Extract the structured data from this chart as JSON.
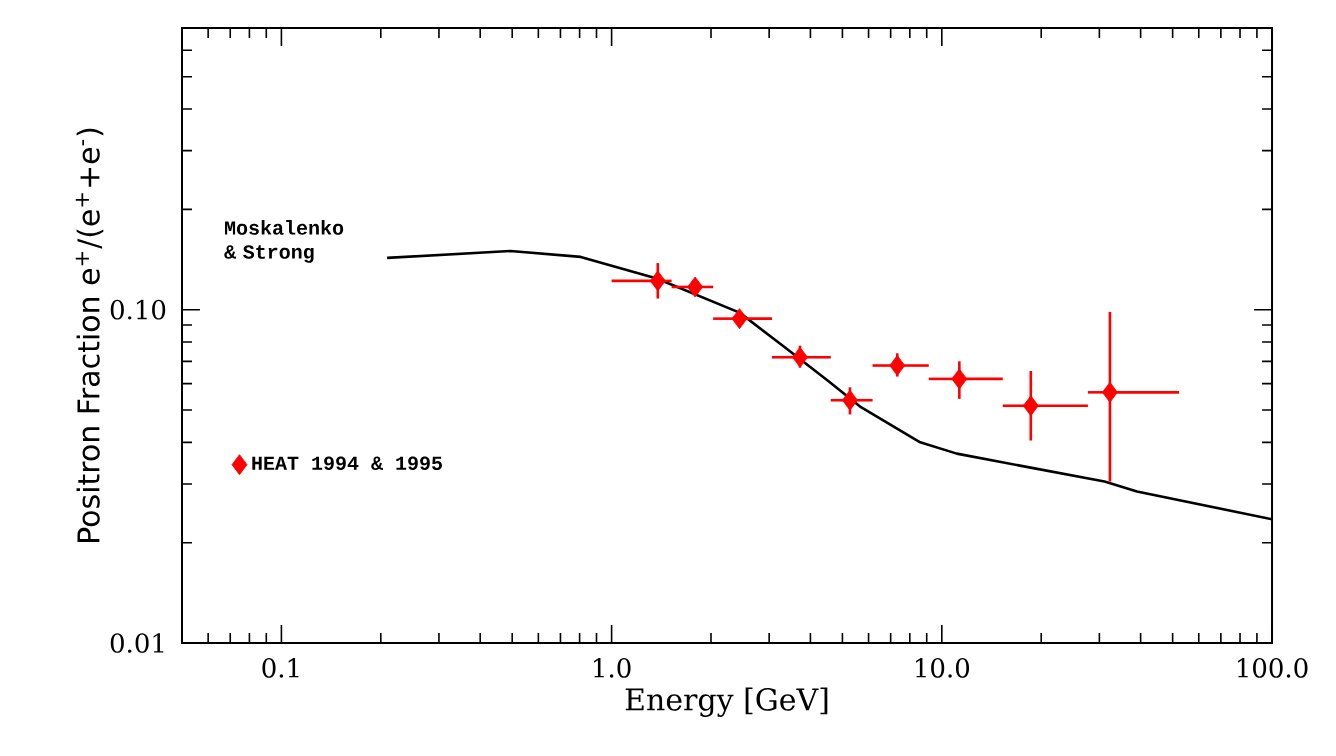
{
  "chart_data": {
    "type": "scatter",
    "xlabel": "Energy [GeV]",
    "ylabel": "Positron Fraction e$^{+}$/(e$^{+}$+e$^{-}$)",
    "log": "xy",
    "xlim": [
      0.05,
      100
    ],
    "ylim": [
      0.01,
      0.7
    ],
    "xticks": [
      {
        "value": 0.1,
        "label": "0.1"
      },
      {
        "value": 1,
        "label": "1.0"
      },
      {
        "value": 10,
        "label": "10.0"
      },
      {
        "value": 100,
        "label": "100.0"
      }
    ],
    "yticks": [
      {
        "value": 0.01,
        "label": "0.01"
      },
      {
        "value": 0.1,
        "label": "0.10"
      }
    ],
    "grid": false,
    "legend": "left",
    "series": [
      {
        "name": "Moskalenko & Strong",
        "type": "line",
        "color": "#000000",
        "marker": "none",
        "line_style": "solid",
        "x": [
          0.209,
          0.494,
          0.806,
          1.37,
          2.44,
          3.3,
          4.54,
          5.69,
          8.6,
          11.1,
          17.4,
          31.1,
          39,
          100
        ],
        "values": [
          0.143,
          0.15,
          0.144,
          0.124,
          0.098,
          0.078,
          0.061,
          0.051,
          0.04,
          0.037,
          0.034,
          0.0305,
          0.0285,
          0.0235
        ]
      },
      {
        "name": "HEAT 1994 & 1995",
        "color": "#ff0000",
        "marker": "diamond",
        "x": [
          1.38,
          1.79,
          2.44,
          3.72,
          5.27,
          7.33,
          11.3,
          18.6,
          32.3
        ],
        "values": [
          0.122,
          0.117,
          0.094,
          0.072,
          0.0535,
          0.068,
          0.062,
          0.0515,
          0.0565
        ],
        "errors": [
          [
            0.108,
            0.138
          ],
          null,
          null,
          [
            0.067,
            0.078
          ],
          0.005,
          [
            0.063,
            0.074
          ],
          0.008,
          [
            0.0405,
            0.0655
          ],
          [
            0.0305,
            0.0985
          ]
        ],
        "xerrors": [
          [
            1.0,
            1.52
          ],
          [
            1.52,
            2.03
          ],
          [
            2.03,
            3.06
          ],
          [
            3.06,
            4.61
          ],
          [
            4.61,
            6.17
          ],
          [
            6.17,
            9.13
          ],
          [
            9.13,
            15.3
          ],
          [
            15.3,
            27.7
          ],
          [
            27.7,
            52.3
          ]
        ]
      }
    ]
  }
}
